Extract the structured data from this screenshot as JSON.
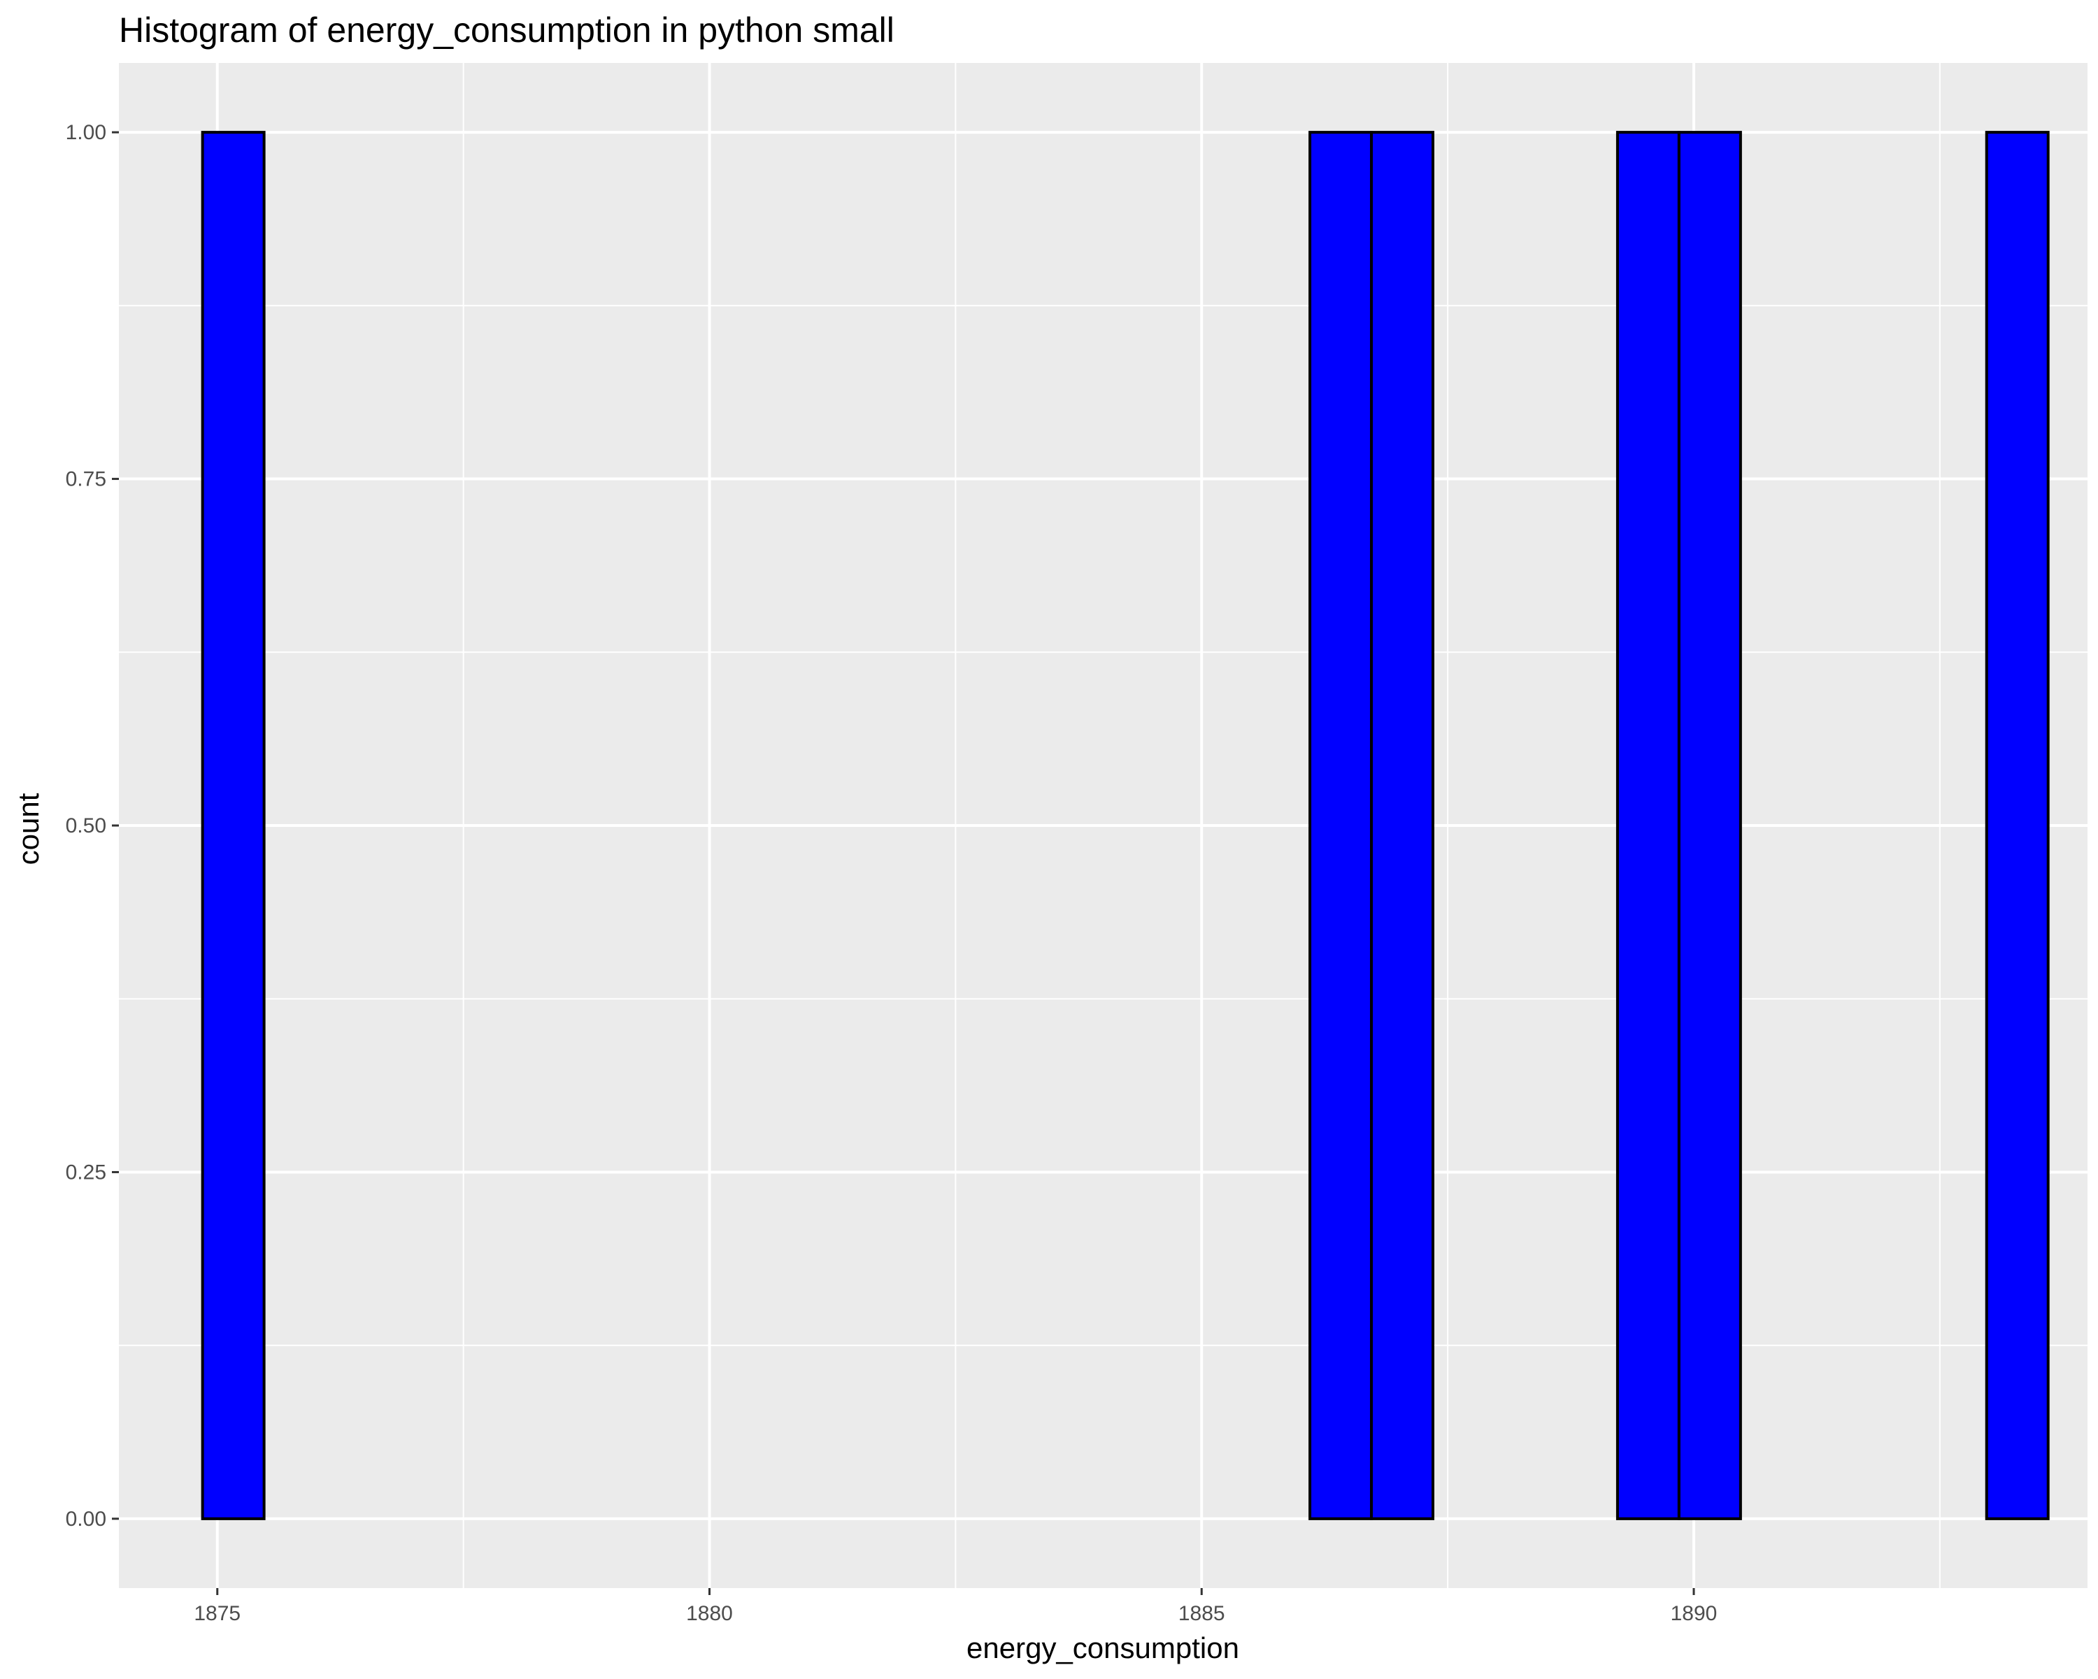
{
  "chart_data": {
    "type": "bar",
    "title": "Histogram of energy_consumption in python small",
    "xlabel": "energy_consumption",
    "ylabel": "count",
    "xlim": [
      1874.0,
      1894.0
    ],
    "ylim": [
      -0.05,
      1.05
    ],
    "xticks": [
      1875,
      1880,
      1885,
      1890
    ],
    "xtick_labels": [
      "1875",
      "1880",
      "1885",
      "1890"
    ],
    "yticks": [
      0.0,
      0.25,
      0.5,
      0.75,
      1.0
    ],
    "ytick_labels": [
      "0.00",
      "0.25",
      "0.50",
      "0.75",
      "1.00"
    ],
    "grid": true,
    "bin_width": 0.625,
    "bins": [
      {
        "x0": 1874.85,
        "x1": 1875.475,
        "count": 1
      },
      {
        "x0": 1875.475,
        "x1": 1876.1,
        "count": 0
      },
      {
        "x0": 1876.1,
        "x1": 1876.725,
        "count": 0
      },
      {
        "x0": 1876.725,
        "x1": 1877.35,
        "count": 0
      },
      {
        "x0": 1877.35,
        "x1": 1877.975,
        "count": 0
      },
      {
        "x0": 1877.975,
        "x1": 1878.6,
        "count": 0
      },
      {
        "x0": 1878.6,
        "x1": 1879.225,
        "count": 0
      },
      {
        "x0": 1879.225,
        "x1": 1879.85,
        "count": 0
      },
      {
        "x0": 1879.85,
        "x1": 1880.475,
        "count": 0
      },
      {
        "x0": 1880.475,
        "x1": 1881.1,
        "count": 0
      },
      {
        "x0": 1881.1,
        "x1": 1881.725,
        "count": 0
      },
      {
        "x0": 1881.725,
        "x1": 1882.35,
        "count": 0
      },
      {
        "x0": 1882.35,
        "x1": 1882.975,
        "count": 0
      },
      {
        "x0": 1882.975,
        "x1": 1883.6,
        "count": 0
      },
      {
        "x0": 1883.6,
        "x1": 1884.225,
        "count": 0
      },
      {
        "x0": 1884.225,
        "x1": 1884.85,
        "count": 0
      },
      {
        "x0": 1884.85,
        "x1": 1885.475,
        "count": 0
      },
      {
        "x0": 1885.475,
        "x1": 1886.1,
        "count": 0
      },
      {
        "x0": 1886.1,
        "x1": 1886.725,
        "count": 1
      },
      {
        "x0": 1886.725,
        "x1": 1887.35,
        "count": 1
      },
      {
        "x0": 1887.35,
        "x1": 1887.975,
        "count": 0
      },
      {
        "x0": 1887.975,
        "x1": 1888.6,
        "count": 0
      },
      {
        "x0": 1888.6,
        "x1": 1889.225,
        "count": 0
      },
      {
        "x0": 1889.225,
        "x1": 1889.85,
        "count": 1
      },
      {
        "x0": 1889.85,
        "x1": 1890.475,
        "count": 1
      },
      {
        "x0": 1890.475,
        "x1": 1891.1,
        "count": 0
      },
      {
        "x0": 1891.1,
        "x1": 1891.725,
        "count": 0
      },
      {
        "x0": 1891.725,
        "x1": 1892.35,
        "count": 0
      },
      {
        "x0": 1892.35,
        "x1": 1892.975,
        "count": 0
      },
      {
        "x0": 1892.975,
        "x1": 1893.6,
        "count": 1
      }
    ],
    "colors": {
      "bar_fill": "#0000ff",
      "bar_outline": "#000000",
      "panel_background": "#ebebeb",
      "grid": "#ffffff",
      "tick_text": "#4d4d4d"
    }
  }
}
